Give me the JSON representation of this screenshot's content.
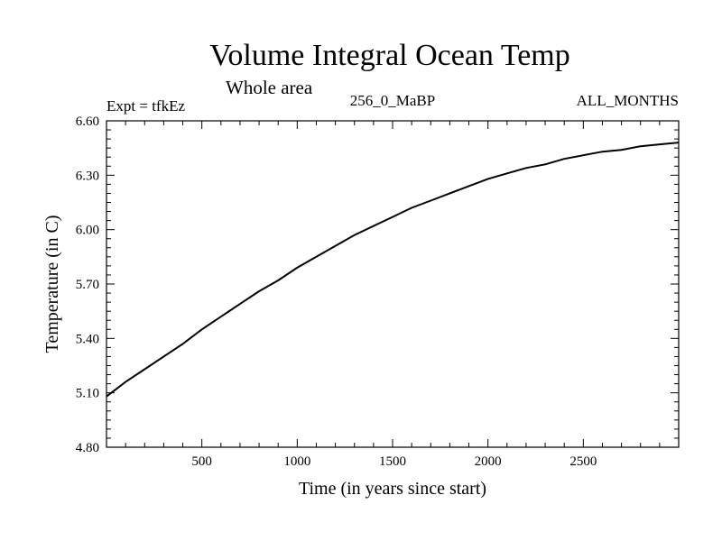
{
  "chart_data": {
    "type": "line",
    "title": "Volume Integral Ocean Temp",
    "subtitle": "Whole area",
    "info_left": "Expt = tfkEz",
    "info_center": "256_0_MaBP",
    "info_right": "ALL_MONTHS",
    "xlabel": "Time (in years since start)",
    "ylabel": "Temperature (in C)",
    "xlim": [
      0,
      3000
    ],
    "ylim": [
      4.8,
      6.6
    ],
    "xticks": [
      500,
      1000,
      1500,
      2000,
      2500
    ],
    "xtick_labels": [
      "500",
      "1000",
      "1500",
      "2000",
      "2500"
    ],
    "yticks": [
      4.8,
      5.1,
      5.4,
      5.7,
      6.0,
      6.3,
      6.6
    ],
    "ytick_labels": [
      "4.80",
      "5.10",
      "5.40",
      "5.70",
      "6.00",
      "6.30",
      "6.60"
    ],
    "grid": false,
    "series": [
      {
        "x": [
          0,
          100,
          200,
          300,
          400,
          500,
          600,
          700,
          800,
          900,
          1000,
          1100,
          1200,
          1300,
          1400,
          1500,
          1600,
          1700,
          1800,
          1900,
          2000,
          2100,
          2200,
          2300,
          2400,
          2500,
          2600,
          2700,
          2800,
          2900,
          3000
        ],
        "values": [
          5.08,
          5.16,
          5.23,
          5.3,
          5.37,
          5.45,
          5.52,
          5.59,
          5.66,
          5.72,
          5.79,
          5.85,
          5.91,
          5.97,
          6.02,
          6.07,
          6.12,
          6.16,
          6.2,
          6.24,
          6.28,
          6.31,
          6.34,
          6.36,
          6.39,
          6.41,
          6.43,
          6.44,
          6.46,
          6.47,
          6.48
        ]
      }
    ]
  }
}
